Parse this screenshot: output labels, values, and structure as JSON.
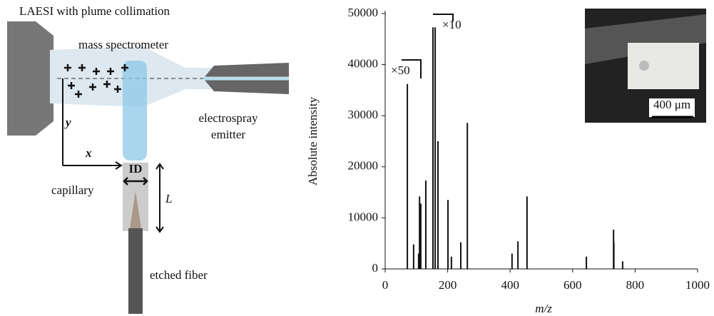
{
  "diagram": {
    "title": "LAESI with plume collimation",
    "mass_spectrometer": "mass spectrometer",
    "emitter_lines": [
      "electrospray",
      "emitter"
    ],
    "capillary": "capillary",
    "fiber": "etched fiber",
    "id": "ID",
    "length": "L",
    "y_label": "y",
    "x_label": "x"
  },
  "inset": {
    "scale_label": "400 μm"
  },
  "chart_data": {
    "type": "stem",
    "xlabel": "m/z",
    "ylabel": "Absolute intensity",
    "color": "#111111",
    "x": [
      71,
      91,
      107,
      110,
      114,
      130,
      153,
      160,
      169,
      201,
      212,
      242,
      263,
      406,
      425,
      454,
      644,
      731,
      732,
      760
    ],
    "values": [
      36200,
      4800,
      3000,
      14200,
      12800,
      17300,
      47300,
      47300,
      25000,
      13500,
      2400,
      5200,
      28600,
      3000,
      5400,
      14200,
      2400,
      7700,
      5200,
      1500
    ],
    "xlim": [
      0,
      1000
    ],
    "xticks": [
      0,
      200,
      400,
      600,
      800,
      1000
    ],
    "ylim": [
      0,
      50000
    ],
    "yticks": [
      0,
      10000,
      20000,
      30000,
      40000,
      50000
    ],
    "annotations": [
      "×50",
      "×10"
    ]
  }
}
